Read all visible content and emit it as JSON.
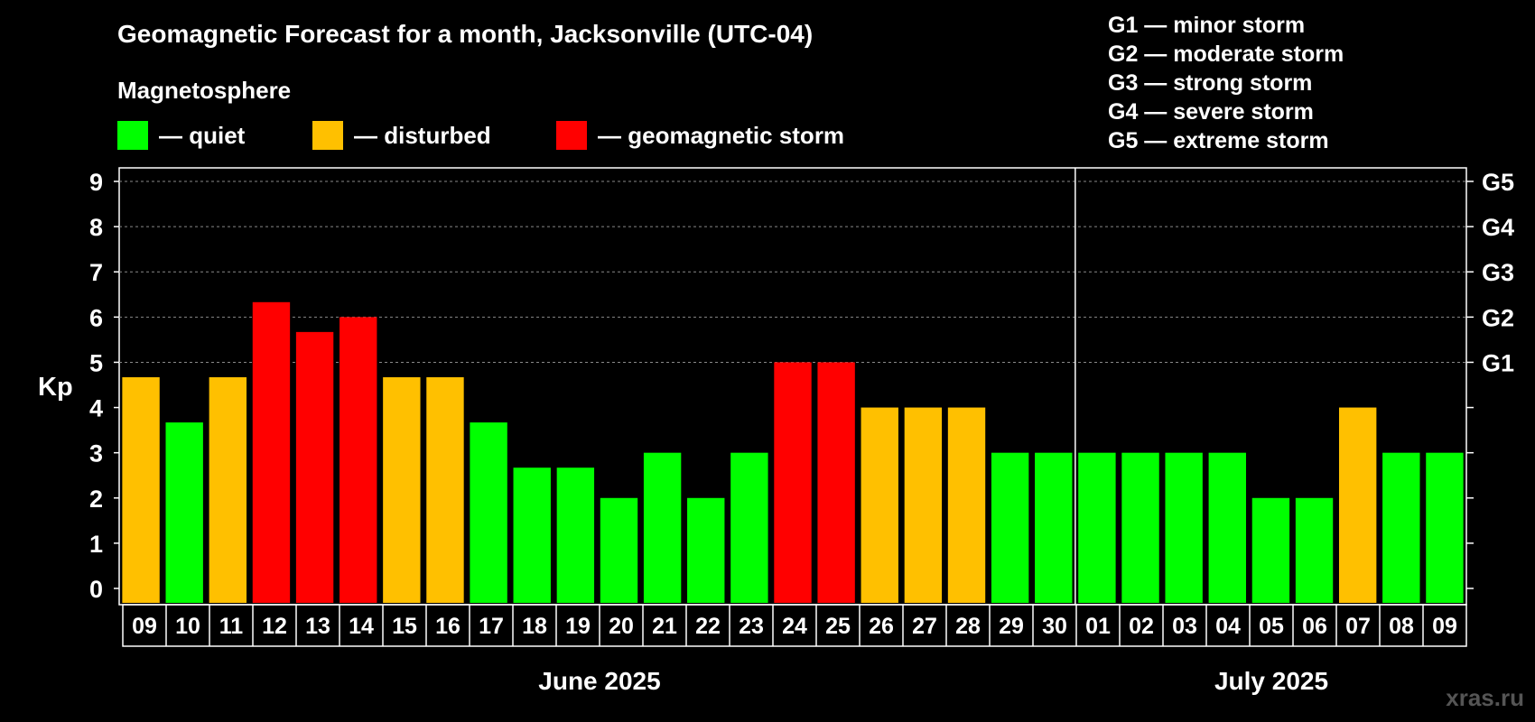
{
  "title": "Geomagnetic Forecast for a month, Jacksonville (UTC-04)",
  "magnetosphere_label": "Magnetosphere",
  "legend": [
    {
      "label": "— quiet",
      "color": "#00ff00"
    },
    {
      "label": "— disturbed",
      "color": "#ffc000"
    },
    {
      "label": "— geomagnetic storm",
      "color": "#ff0000"
    }
  ],
  "g_scale": [
    "G1 — minor storm",
    "G2 — moderate storm",
    "G3 — strong storm",
    "G4 — severe storm",
    "G5 — extreme storm"
  ],
  "watermark": "xras.ru",
  "chart_data": {
    "type": "bar",
    "ylabel": "Kp",
    "ylim": [
      0,
      9
    ],
    "yticks": [
      0,
      1,
      2,
      3,
      4,
      5,
      6,
      7,
      8,
      9
    ],
    "right_axis_labels": [
      {
        "kp": 5,
        "label": "G1"
      },
      {
        "kp": 6,
        "label": "G2"
      },
      {
        "kp": 7,
        "label": "G3"
      },
      {
        "kp": 8,
        "label": "G4"
      },
      {
        "kp": 9,
        "label": "G5"
      }
    ],
    "grid": true,
    "categories": [
      "09",
      "10",
      "11",
      "12",
      "13",
      "14",
      "15",
      "16",
      "17",
      "18",
      "19",
      "20",
      "21",
      "22",
      "23",
      "24",
      "25",
      "26",
      "27",
      "28",
      "29",
      "30",
      "01",
      "02",
      "03",
      "04",
      "05",
      "06",
      "07",
      "08",
      "09"
    ],
    "values": [
      4.67,
      3.67,
      4.67,
      6.33,
      5.67,
      6.0,
      4.67,
      4.67,
      3.67,
      2.67,
      2.67,
      2.0,
      3.0,
      2.0,
      3.0,
      5.0,
      5.0,
      4.0,
      4.0,
      4.0,
      3.0,
      3.0,
      3.0,
      3.0,
      3.0,
      3.0,
      2.0,
      2.0,
      4.0,
      3.0,
      3.0
    ],
    "status": [
      "disturbed",
      "quiet",
      "disturbed",
      "storm",
      "storm",
      "storm",
      "disturbed",
      "disturbed",
      "quiet",
      "quiet",
      "quiet",
      "quiet",
      "quiet",
      "quiet",
      "quiet",
      "storm",
      "storm",
      "disturbed",
      "disturbed",
      "disturbed",
      "quiet",
      "quiet",
      "quiet",
      "quiet",
      "quiet",
      "quiet",
      "quiet",
      "quiet",
      "disturbed",
      "quiet",
      "quiet"
    ],
    "status_colors": {
      "quiet": "#00ff00",
      "disturbed": "#ffc000",
      "storm": "#ff0000"
    },
    "months": [
      {
        "label": "June 2025",
        "days": 22
      },
      {
        "label": "July 2025",
        "days": 9
      }
    ]
  }
}
